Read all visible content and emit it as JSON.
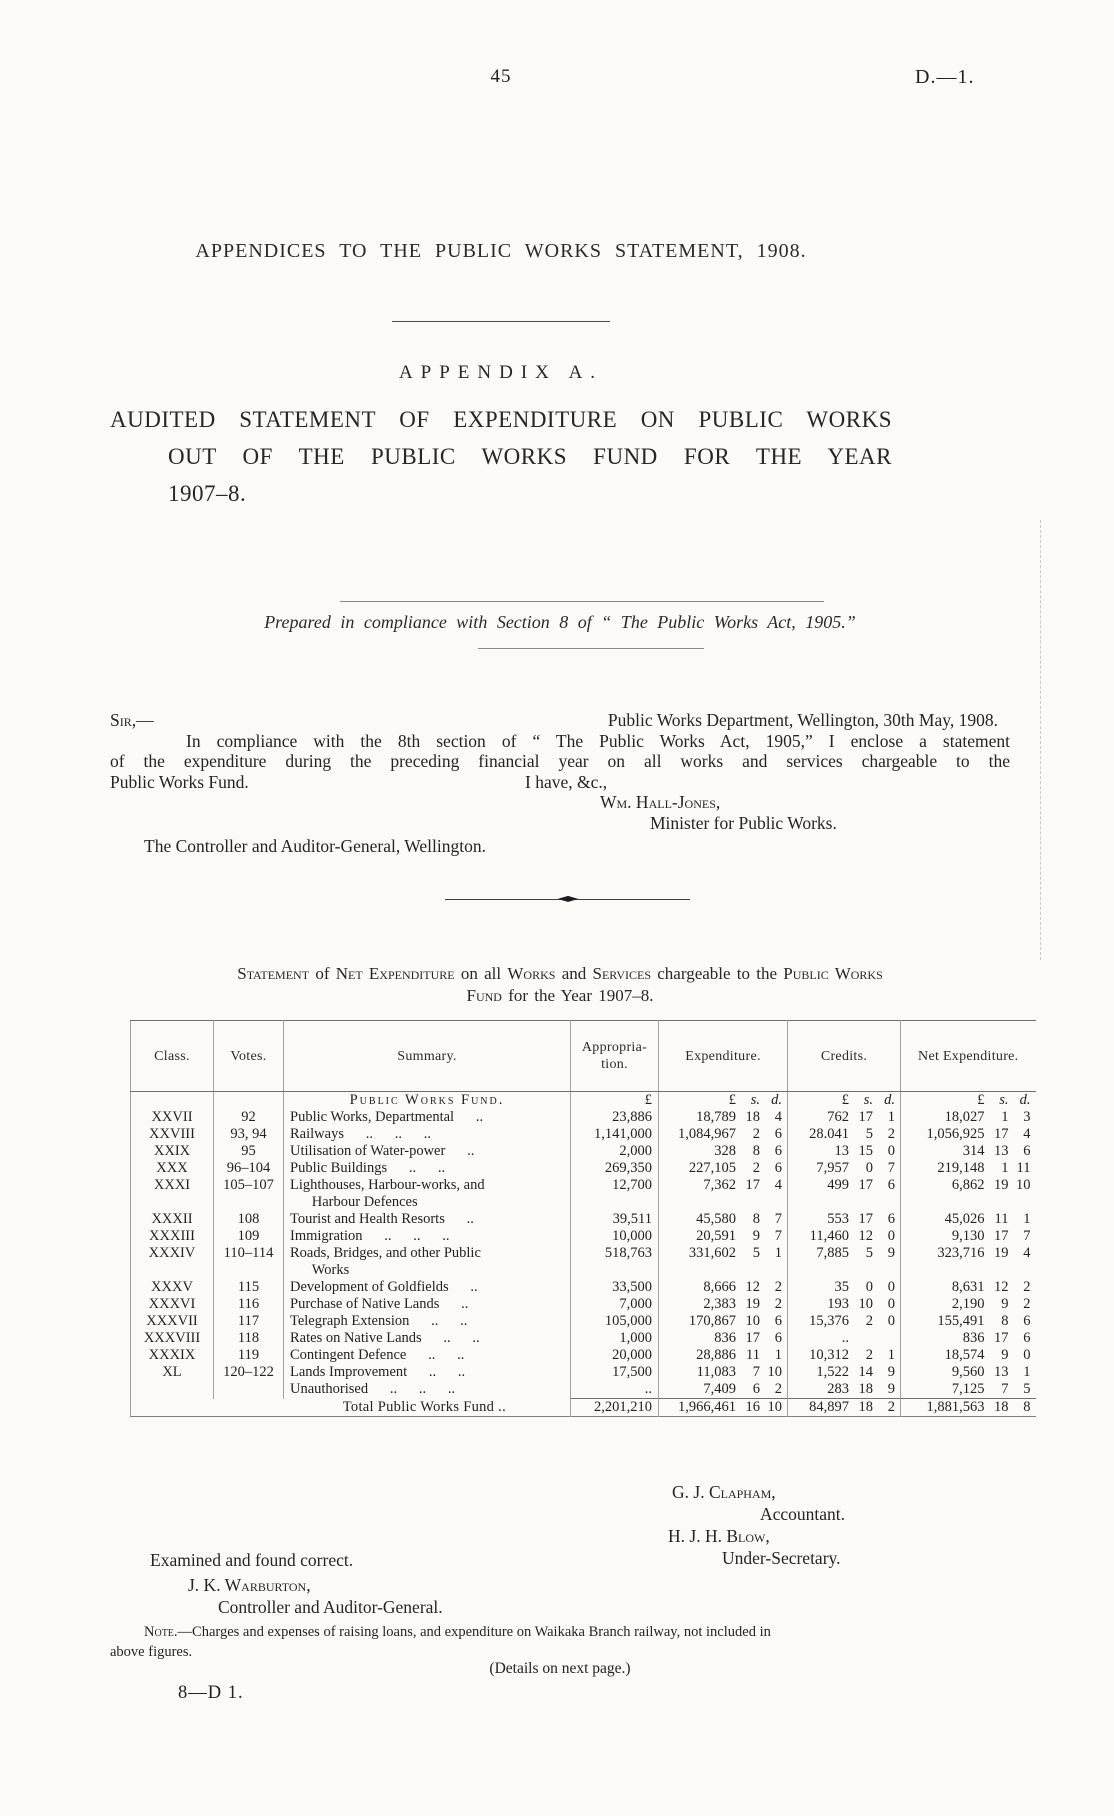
{
  "page": {
    "page_number": "45",
    "doc_ref": "D.—1.",
    "main_title": "APPENDICES TO THE PUBLIC WORKS STATEMENT, 1908.",
    "appendix_heading": "APPENDIX A.",
    "audited_title_lines": [
      "AUDITED STATEMENT OF EXPENDITURE ON PUBLIC WORKS",
      "OUT OF THE PUBLIC WORKS FUND FOR THE YEAR",
      "1907–8."
    ],
    "compliance_line": "Prepared in compliance with Section 8 of “ The Public Works Act, 1905.”"
  },
  "letter": {
    "salutation": "Sir,—",
    "dateline": "Public Works Department, Wellington, 30th May, 1908.",
    "body_lines": [
      "In compliance with the 8th section of “ The Public Works Act, 1905,” I enclose a statement",
      "of the expenditure during the preceding financial year on all works and services chargeable to the"
    ],
    "body_last_left": "Public Works Fund.",
    "valediction": "I have, &c.,",
    "signature_name": "Wm. Hall-Jones,",
    "signature_title": "Minister for Public Works.",
    "addressee": "The Controller and Auditor-General, Wellington."
  },
  "caption": {
    "p1": "Statement",
    "p2": " of ",
    "p3": "Net Expenditure",
    "p4": " on all ",
    "p5": "Works",
    "p6": " and ",
    "p7": "Services",
    "p8": " chargeable to the ",
    "p9": "Public Works",
    "l2p1": "Fund",
    "l2p2": " for the Year 1907–8."
  },
  "table": {
    "columns": [
      "Class.",
      "Votes.",
      "Summary.",
      "Appropria-\ntion.",
      "Expenditure.",
      "Credits.",
      "Net Expenditure."
    ],
    "section_heading": "Public Works Fund.",
    "unit_pound": "£",
    "unit_money": [
      "£",
      "s.",
      "d."
    ],
    "rows": [
      {
        "class": "XXVII",
        "votes": "92",
        "summary": "Public Works, Departmental      ..",
        "approp": "23,886",
        "exp": [
          "18,789",
          "18",
          "4"
        ],
        "cred": [
          "762",
          "17",
          "1"
        ],
        "net": [
          "18,027",
          "1",
          "3"
        ]
      },
      {
        "class": "XXVIII",
        "votes": "93, 94",
        "summary": "Railways      ..      ..      ..",
        "approp": "1,141,000",
        "exp": [
          "1,084,967",
          "2",
          "6"
        ],
        "cred": [
          "28.041",
          "5",
          "2"
        ],
        "net": [
          "1,056,925",
          "17",
          "4"
        ]
      },
      {
        "class": "XXIX",
        "votes": "95",
        "summary": "Utilisation of Water-power      ..",
        "approp": "2,000",
        "exp": [
          "328",
          "8",
          "6"
        ],
        "cred": [
          "13",
          "15",
          "0"
        ],
        "net": [
          "314",
          "13",
          "6"
        ]
      },
      {
        "class": "XXX",
        "votes": "96–104",
        "summary": "Public Buildings      ..      ..",
        "approp": "269,350",
        "exp": [
          "227,105",
          "2",
          "6"
        ],
        "cred": [
          "7,957",
          "0",
          "7"
        ],
        "net": [
          "219,148",
          "1",
          "11"
        ]
      },
      {
        "class": "XXXI",
        "votes": "105–107",
        "summary": "Lighthouses, Harbour-works, and\n      Harbour Defences",
        "approp": "12,700",
        "exp": [
          "7,362",
          "17",
          "4"
        ],
        "cred": [
          "499",
          "17",
          "6"
        ],
        "net": [
          "6,862",
          "19",
          "10"
        ]
      },
      {
        "class": "XXXII",
        "votes": "108",
        "summary": "Tourist and Health Resorts      ..",
        "approp": "39,511",
        "exp": [
          "45,580",
          "8",
          "7"
        ],
        "cred": [
          "553",
          "17",
          "6"
        ],
        "net": [
          "45,026",
          "11",
          "1"
        ]
      },
      {
        "class": "XXXIII",
        "votes": "109",
        "summary": "Immigration      ..      ..      ..",
        "approp": "10,000",
        "exp": [
          "20,591",
          "9",
          "7"
        ],
        "cred": [
          "11,460",
          "12",
          "0"
        ],
        "net": [
          "9,130",
          "17",
          "7"
        ]
      },
      {
        "class": "XXXIV",
        "votes": "110–114",
        "summary": "Roads, Bridges, and other Public\n      Works",
        "approp": "518,763",
        "exp": [
          "331,602",
          "5",
          "1"
        ],
        "cred": [
          "7,885",
          "5",
          "9"
        ],
        "net": [
          "323,716",
          "19",
          "4"
        ]
      },
      {
        "class": "XXXV",
        "votes": "115",
        "summary": "Development of Goldfields      ..",
        "approp": "33,500",
        "exp": [
          "8,666",
          "12",
          "2"
        ],
        "cred": [
          "35",
          "0",
          "0"
        ],
        "net": [
          "8,631",
          "12",
          "2"
        ]
      },
      {
        "class": "XXXVI",
        "votes": "116",
        "summary": "Purchase of Native Lands      ..",
        "approp": "7,000",
        "exp": [
          "2,383",
          "19",
          "2"
        ],
        "cred": [
          "193",
          "10",
          "0"
        ],
        "net": [
          "2,190",
          "9",
          "2"
        ]
      },
      {
        "class": "XXXVII",
        "votes": "117",
        "summary": "Telegraph Extension      ..      ..",
        "approp": "105,000",
        "exp": [
          "170,867",
          "10",
          "6"
        ],
        "cred": [
          "15,376",
          "2",
          "0"
        ],
        "net": [
          "155,491",
          "8",
          "6"
        ]
      },
      {
        "class": "XXXVIII",
        "votes": "118",
        "summary": "Rates on Native Lands      ..      ..",
        "approp": "1,000",
        "exp": [
          "836",
          "17",
          "6"
        ],
        "cred": [
          "..",
          "",
          ""
        ],
        "net": [
          "836",
          "17",
          "6"
        ]
      },
      {
        "class": "XXXIX",
        "votes": "119",
        "summary": "Contingent Defence      ..      ..",
        "approp": "20,000",
        "exp": [
          "28,886",
          "11",
          "1"
        ],
        "cred": [
          "10,312",
          "2",
          "1"
        ],
        "net": [
          "18,574",
          "9",
          "0"
        ]
      },
      {
        "class": "XL",
        "votes": "120–122",
        "summary": "Lands Improvement      ..      ..",
        "approp": "17,500",
        "exp": [
          "11,083",
          "7",
          "10"
        ],
        "cred": [
          "1,522",
          "14",
          "9"
        ],
        "net": [
          "9,560",
          "13",
          "1"
        ]
      },
      {
        "class": "",
        "votes": "",
        "summary": "Unauthorised      ..      ..      ..",
        "approp": "..",
        "exp": [
          "7,409",
          "6",
          "2"
        ],
        "cred": [
          "283",
          "18",
          "9"
        ],
        "net": [
          "7,125",
          "7",
          "5"
        ]
      }
    ],
    "total": {
      "label": "Total Public Works Fund ..",
      "approp": "2,201,210",
      "exp": [
        "1,966,461",
        "16",
        "10"
      ],
      "cred": [
        "84,897",
        "18",
        "2"
      ],
      "net": [
        "1,881,563",
        "18",
        "8"
      ]
    }
  },
  "signatures": {
    "accountant_name": "G. J. Clapham,",
    "accountant_title": "Accountant.",
    "undersecretary_name": "H. J. H. Blow,",
    "undersecretary_title": "Under-Secretary.",
    "examined_line": "Examined and found correct.",
    "auditor_name": "J. K. Warburton,",
    "auditor_title": "Controller and Auditor-General."
  },
  "footer": {
    "note_p1": "Note.",
    "note_p2": "—Charges and expenses of raising loans, and expenditure on Waikaka Branch railway, not included in",
    "note_line2": "above figures.",
    "details_line": "(Details on next page.)",
    "imprint": "8—D 1."
  },
  "colors": {
    "paper": "#fbfaf7",
    "ink": "#222222",
    "table_line": "#8c8c8c"
  }
}
